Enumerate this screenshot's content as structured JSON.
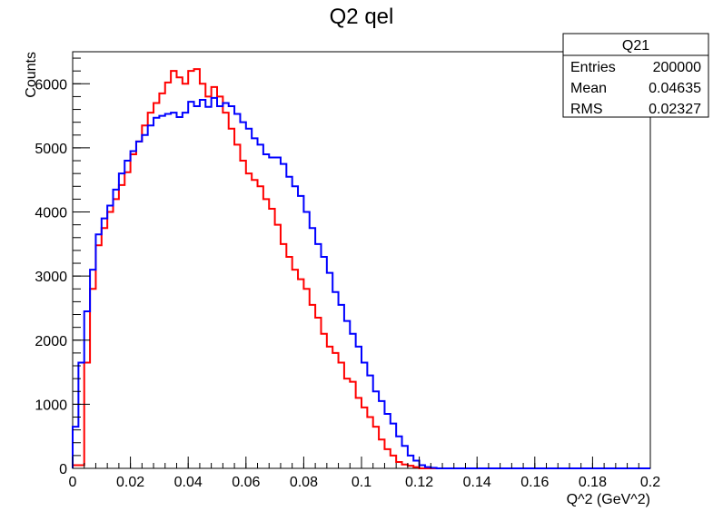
{
  "chart_data": {
    "type": "histogram",
    "title": "Q2 qel",
    "xlabel": "Q^2 (GeV^2)",
    "ylabel": "Counts",
    "xlim": [
      0,
      0.2
    ],
    "ylim": [
      0,
      6500
    ],
    "bin_width": 0.002,
    "x_ticks": [
      "0",
      "0.02",
      "0.04",
      "0.06",
      "0.08",
      "0.1",
      "0.12",
      "0.14",
      "0.16",
      "0.18",
      "0.2"
    ],
    "y_ticks": [
      "0",
      "1000",
      "2000",
      "3000",
      "4000",
      "5000",
      "6000"
    ],
    "stats_box": {
      "name": "Q21",
      "rows": [
        {
          "label": "Entries",
          "value": "200000"
        },
        {
          "label": "Mean",
          "value": "0.04635"
        },
        {
          "label": "RMS",
          "value": "0.02327"
        }
      ]
    },
    "series": [
      {
        "color": "#ff0000",
        "values": [
          50,
          50,
          1650,
          2800,
          3480,
          3750,
          4000,
          4200,
          4420,
          4620,
          4900,
          5100,
          5350,
          5550,
          5700,
          5850,
          6020,
          6200,
          6100,
          6000,
          6200,
          6230,
          6000,
          5800,
          5950,
          5800,
          5550,
          5300,
          5050,
          4800,
          4600,
          4500,
          4400,
          4200,
          4050,
          3800,
          3500,
          3300,
          3100,
          2950,
          2800,
          2550,
          2350,
          2100,
          1900,
          1800,
          1650,
          1400,
          1350,
          1100,
          950,
          800,
          650,
          450,
          300,
          200,
          100,
          60,
          40,
          20,
          0,
          0,
          0,
          0,
          0,
          0,
          0,
          0,
          0,
          0,
          0,
          0,
          0,
          0,
          0,
          0,
          0,
          0,
          0,
          0,
          0,
          0,
          0,
          0,
          0,
          0,
          0,
          0,
          0,
          0,
          0,
          0,
          0,
          0,
          0,
          0,
          0,
          0,
          0,
          0
        ]
      },
      {
        "color": "#0000ff",
        "values": [
          650,
          1650,
          2450,
          3100,
          3650,
          3900,
          4100,
          4350,
          4600,
          4800,
          4950,
          5100,
          5200,
          5350,
          5470,
          5500,
          5530,
          5550,
          5480,
          5550,
          5720,
          5650,
          5750,
          5640,
          5780,
          5650,
          5700,
          5650,
          5530,
          5400,
          5300,
          5150,
          5050,
          4900,
          4850,
          4850,
          4750,
          4550,
          4400,
          4250,
          4000,
          3750,
          3500,
          3300,
          3050,
          2750,
          2550,
          2300,
          2100,
          1900,
          1650,
          1450,
          1200,
          1050,
          850,
          700,
          500,
          350,
          200,
          120,
          50,
          20,
          8,
          0,
          0,
          0,
          0,
          0,
          0,
          0,
          0,
          0,
          0,
          0,
          0,
          0,
          0,
          0,
          0,
          0,
          0,
          0,
          0,
          0,
          0,
          0,
          0,
          0,
          0,
          0,
          0,
          0,
          0,
          0,
          0,
          0,
          0,
          0,
          0,
          0
        ]
      }
    ]
  }
}
